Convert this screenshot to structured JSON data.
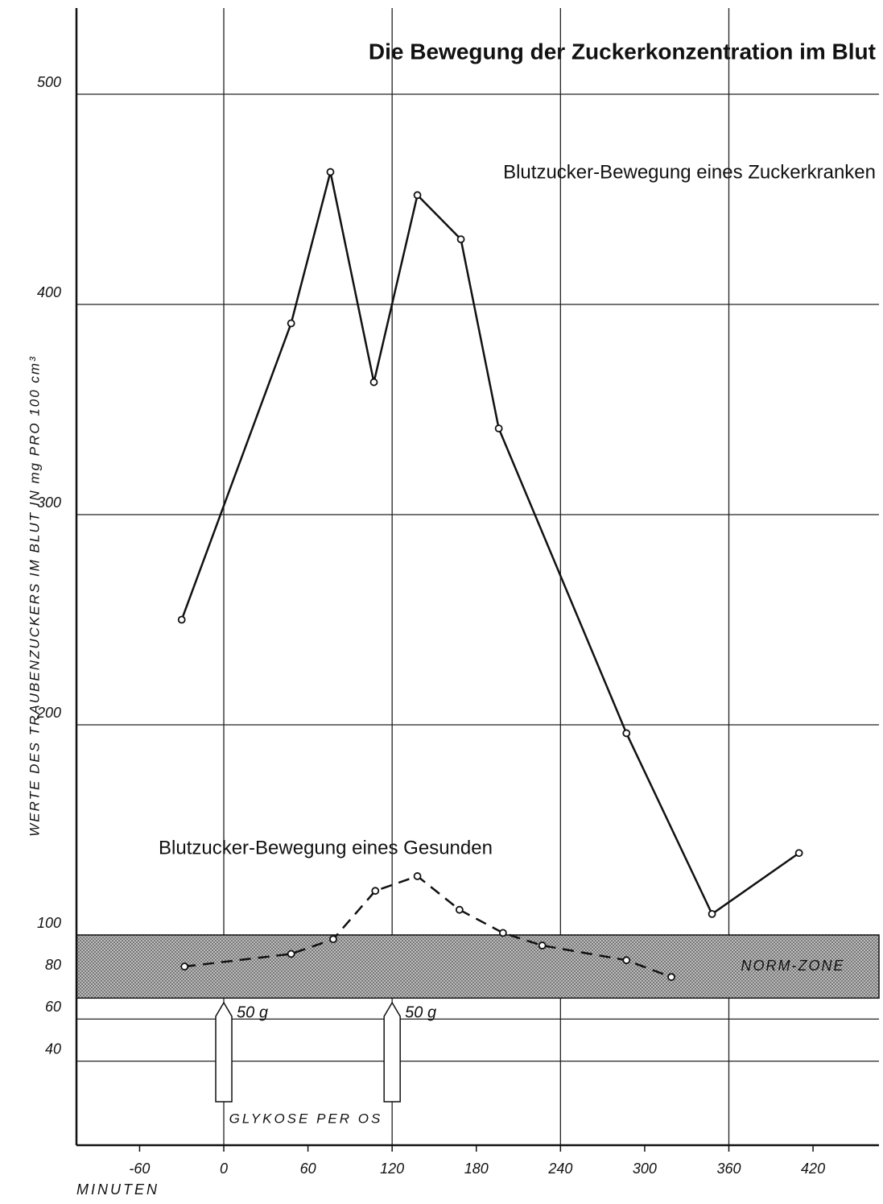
{
  "chart_data": {
    "type": "line",
    "title": "Die Bewegung der Zuckerkonzentration im Blut",
    "x_label": "MINUTEN",
    "y_label": "WERTE DES TRAUBENZUCKERS IM BLUT IN mg PRO 100 cm³",
    "xlim": [
      -105,
      467
    ],
    "ylim": [
      0,
      541
    ],
    "xticks": [
      -60,
      0,
      60,
      120,
      180,
      240,
      300,
      360,
      420
    ],
    "yticks": [
      500,
      400,
      300,
      200,
      100,
      80,
      60,
      40
    ],
    "grid": true,
    "series": [
      {
        "name": "Blutzucker-Bewegung eines Zuckerkranken",
        "color": "#111111",
        "dashed": false,
        "x": [
          -30,
          48,
          76,
          107,
          138,
          169,
          196,
          287,
          348,
          410
        ],
        "values": [
          250,
          391,
          463,
          363,
          452,
          431,
          341,
          196,
          110,
          139
        ]
      },
      {
        "name": "Blutzucker-Bewegung eines Gesunden",
        "color": "#111111",
        "dashed": true,
        "x": [
          -28,
          48,
          78,
          108,
          138,
          168,
          199,
          227,
          287,
          319
        ],
        "values": [
          85,
          91,
          98,
          121,
          128,
          112,
          101,
          95,
          88,
          80
        ]
      }
    ],
    "norm_zone": {
      "label": "NORM-ZONE",
      "range": [
        70,
        100
      ]
    },
    "doses": [
      {
        "x": 0,
        "label": "50 g"
      },
      {
        "x": 120,
        "label": "50 g"
      }
    ],
    "dose_caption": "GLYKOSE PER OS"
  }
}
